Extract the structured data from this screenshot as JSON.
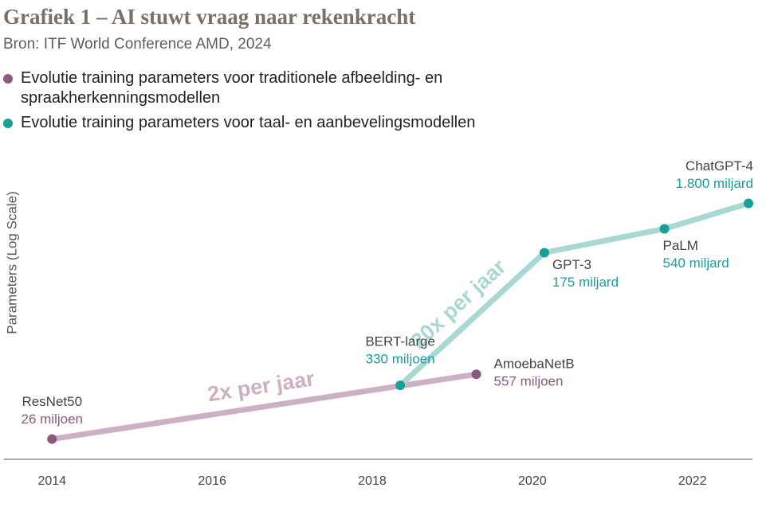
{
  "chart_data": {
    "type": "line",
    "title": "Grafiek 1 – AI stuwt vraag naar rekenkracht",
    "subtitle": "Bron: ITF World Conference AMD, 2024",
    "y_label": "Parameters (Log Scale)",
    "yscale": "log",
    "xlim": [
      2013.4,
      2022.75
    ],
    "xticks": [
      2014,
      2016,
      2018,
      2020,
      2022
    ],
    "ylim": [
      10000000,
      10000000000000
    ],
    "series": [
      {
        "name": "Evolutie training parameters voor traditionele afbeelding- en spraakherkenningsmodellen",
        "color": "#8a5a7e",
        "line_color": "#cdb0c4",
        "annotation": "2x per jaar",
        "x": [
          2014.0,
          2019.3
        ],
        "labels": [
          "ResNet50",
          "AmoebaNetB"
        ],
        "values": [
          26000000,
          557000000
        ],
        "value_labels": [
          "26 miljoen",
          "557 miljoen"
        ]
      },
      {
        "name": "Evolutie training parameters voor taal- en aanbevelingsmodellen",
        "color": "#17a098",
        "line_color": "#a9d7d4",
        "annotation": "20x per jaar",
        "x": [
          2018.35,
          2020.15,
          2021.65,
          2022.7
        ],
        "labels": [
          "BERT-large",
          "GPT-3",
          "PaLM",
          "ChatGPT-4"
        ],
        "values": [
          330000000,
          175000000000,
          540000000000,
          1800000000000
        ],
        "value_labels": [
          "330 miljoen",
          "175 miljard",
          "540 miljard",
          "1.800 miljard"
        ]
      }
    ]
  }
}
